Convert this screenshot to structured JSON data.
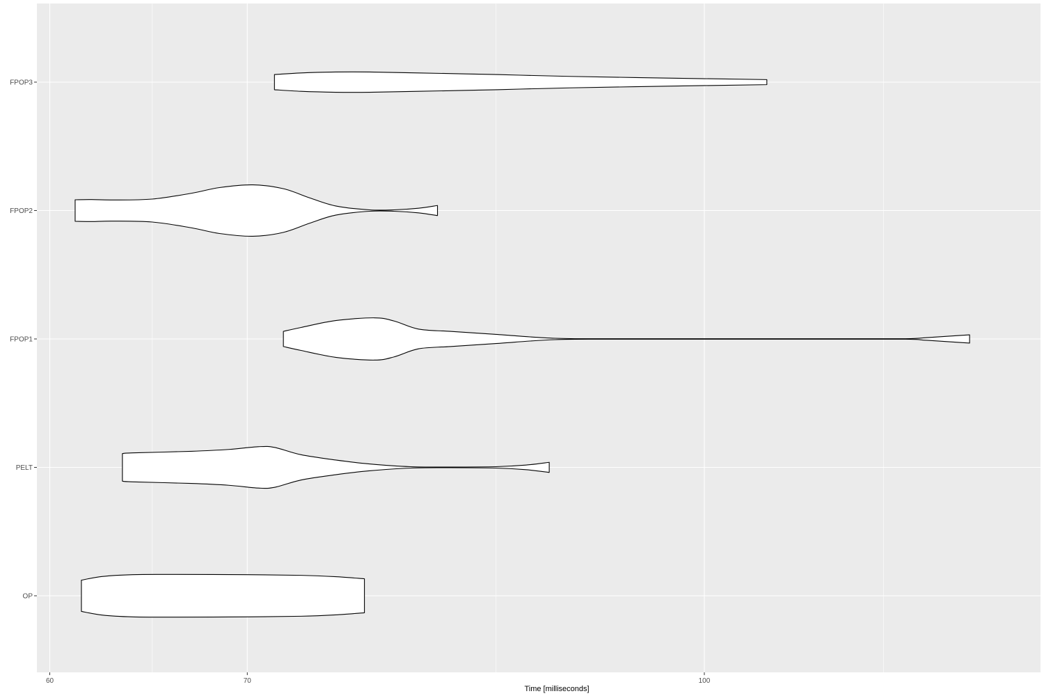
{
  "colors": {
    "panel_background": "#ebebeb",
    "grid_major": "#ffffff",
    "violin_fill": "#ffffff",
    "violin_stroke": "#000000",
    "tick_text": "#4d4d4d",
    "tick_mark": "#333333"
  },
  "chart_data": {
    "type": "violin",
    "orientation": "horizontal",
    "title": "",
    "xlabel": "Time [milliseconds]",
    "ylabel": "",
    "x_scale": "log10",
    "xlim": [
      59.4,
      130
    ],
    "x_ticks": [
      60,
      70,
      100
    ],
    "x_tick_labels": [
      "60",
      "70",
      "100"
    ],
    "x_minor_gridlines": [
      65,
      85,
      115
    ],
    "grid": true,
    "legend": "none",
    "categories": [
      "OP",
      "PELT",
      "FPOP1",
      "FPOP2",
      "FPOP3"
    ],
    "series": [
      {
        "category": "OP",
        "profile": [
          [
            61.5,
            0.68
          ],
          [
            62.5,
            0.84
          ],
          [
            64,
            0.92
          ],
          [
            66,
            0.93
          ],
          [
            70,
            0.92
          ],
          [
            73,
            0.89
          ],
          [
            75,
            0.83
          ],
          [
            76.7,
            0.74
          ]
        ]
      },
      {
        "category": "PELT",
        "profile": [
          [
            63.5,
            0.6
          ],
          [
            64,
            0.63
          ],
          [
            67,
            0.7
          ],
          [
            69,
            0.78
          ],
          [
            70.6,
            0.9
          ],
          [
            71.5,
            0.87
          ],
          [
            73,
            0.55
          ],
          [
            75,
            0.32
          ],
          [
            77,
            0.15
          ],
          [
            79.5,
            0.03
          ],
          [
            82,
            0.015
          ],
          [
            85,
            0.03
          ],
          [
            87,
            0.1
          ],
          [
            88.6,
            0.22
          ]
        ]
      },
      {
        "category": "FPOP1",
        "profile": [
          [
            72,
            0.33
          ],
          [
            73,
            0.5
          ],
          [
            75,
            0.8
          ],
          [
            77.3,
            0.92
          ],
          [
            78.5,
            0.78
          ],
          [
            80,
            0.43
          ],
          [
            82,
            0.33
          ],
          [
            85,
            0.2
          ],
          [
            89,
            0.03
          ],
          [
            94,
            0.01
          ],
          [
            110,
            0.01
          ],
          [
            117,
            0.01
          ],
          [
            119,
            0.06
          ],
          [
            123,
            0.18
          ]
        ]
      },
      {
        "category": "FPOP2",
        "profile": [
          [
            61.2,
            0.47
          ],
          [
            62,
            0.48
          ],
          [
            63,
            0.46
          ],
          [
            65,
            0.5
          ],
          [
            67,
            0.75
          ],
          [
            68.5,
            1.0
          ],
          [
            70.3,
            1.12
          ],
          [
            72,
            0.95
          ],
          [
            73.5,
            0.55
          ],
          [
            75,
            0.2
          ],
          [
            77,
            0.03
          ],
          [
            78.5,
            0.03
          ],
          [
            80,
            0.1
          ],
          [
            81.2,
            0.22
          ]
        ]
      },
      {
        "category": "FPOP3",
        "profile": [
          [
            71.5,
            0.33
          ],
          [
            73,
            0.4
          ],
          [
            75,
            0.44
          ],
          [
            77,
            0.44
          ],
          [
            80,
            0.4
          ],
          [
            85,
            0.33
          ],
          [
            90,
            0.25
          ],
          [
            100,
            0.15
          ],
          [
            105,
            0.11
          ]
        ]
      }
    ]
  }
}
